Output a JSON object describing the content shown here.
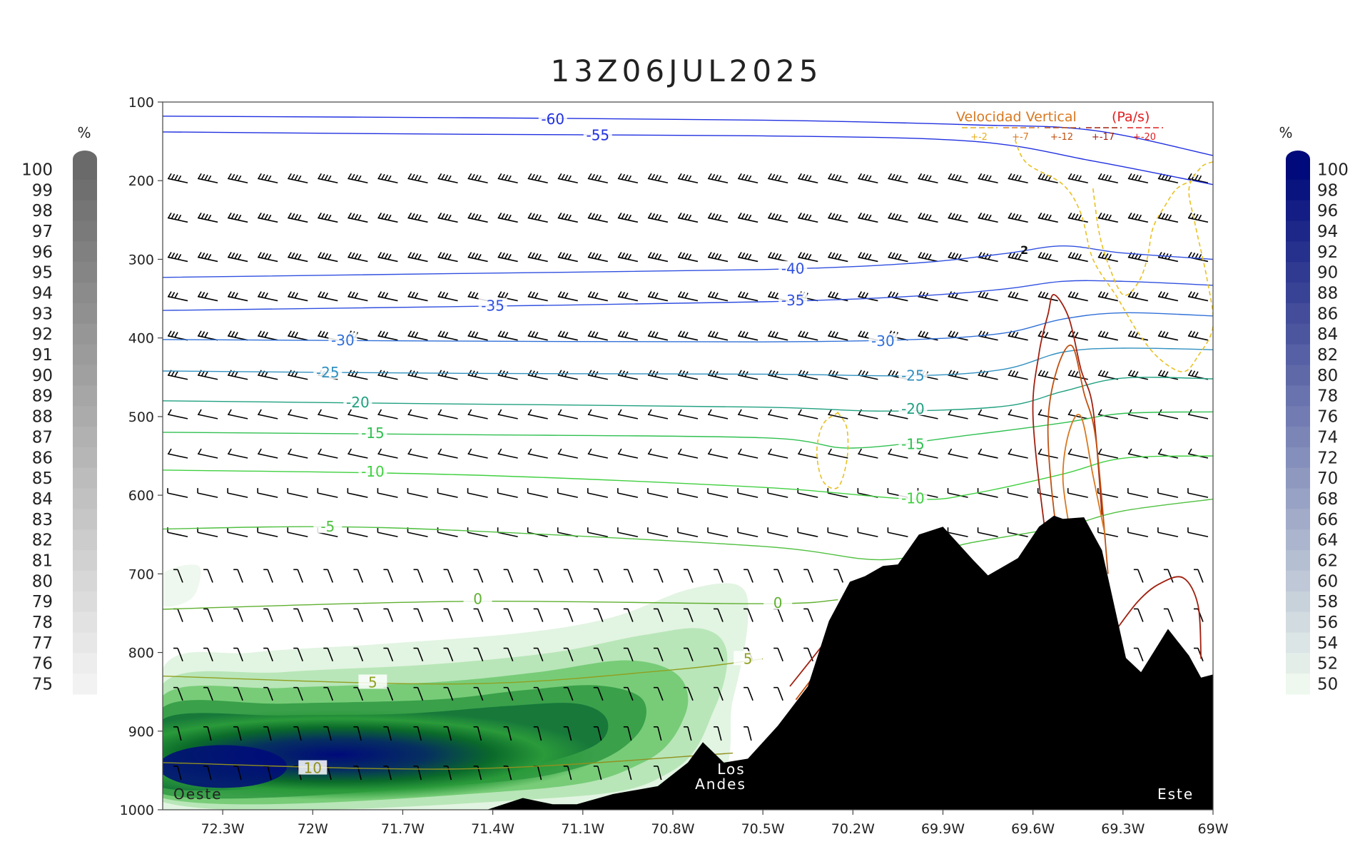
{
  "chart_data": {
    "type": "contour",
    "title": "13Z06JUL2025",
    "xlabel": "",
    "ylabel": "",
    "x_ticks": [
      "72.3W",
      "72W",
      "71.7W",
      "71.4W",
      "71.1W",
      "70.8W",
      "70.5W",
      "70.2W",
      "69.9W",
      "69.6W",
      "69.3W",
      "69W"
    ],
    "x_tick_values": [
      -72.3,
      -72.0,
      -71.7,
      -71.4,
      -71.1,
      -70.8,
      -70.5,
      -70.2,
      -69.9,
      -69.6,
      -69.3,
      -69.0
    ],
    "xlim": [
      -72.5,
      -69.0
    ],
    "y_ticks": [
      "100",
      "200",
      "300",
      "400",
      "500",
      "600",
      "700",
      "800",
      "900",
      "1000"
    ],
    "y_tick_values": [
      100,
      200,
      300,
      400,
      500,
      600,
      700,
      800,
      900,
      1000
    ],
    "ylim": [
      100,
      1000
    ],
    "y_scale": "linear-inverted",
    "annotations": {
      "terrain": [
        "Los",
        "Andes"
      ],
      "west": "Oeste",
      "east": "Este",
      "contour_label_2": "2"
    },
    "vertical_velocity_legend": {
      "title": "Velocidad Vertical",
      "units": "(Pa/s)",
      "entries": [
        {
          "label": "+-2",
          "color": "#e8b020"
        },
        {
          "label": "+-7",
          "color": "#d87820"
        },
        {
          "label": "+-12",
          "color": "#c05010"
        },
        {
          "label": "+-17",
          "color": "#a02010"
        },
        {
          "label": "+-20",
          "color": "#e02020"
        }
      ]
    },
    "cloud_colorbar": {
      "unit": "%",
      "labels": [
        "100",
        "99",
        "98",
        "97",
        "96",
        "95",
        "94",
        "93",
        "92",
        "91",
        "90",
        "89",
        "88",
        "87",
        "86",
        "85",
        "84",
        "83",
        "82",
        "81",
        "80",
        "79",
        "78",
        "77",
        "76",
        "75"
      ],
      "color_top": "#6a6a6a",
      "color_bottom": "#f2f2f2"
    },
    "humidity_colorbar": {
      "unit": "%",
      "labels": [
        "100",
        "98",
        "96",
        "94",
        "92",
        "90",
        "88",
        "86",
        "84",
        "82",
        "80",
        "78",
        "76",
        "74",
        "72",
        "70",
        "68",
        "66",
        "64",
        "62",
        "60",
        "58",
        "56",
        "54",
        "52",
        "50"
      ],
      "color_top": "#000a7a",
      "color_bottom": "#eef8ee"
    },
    "temperature_isotherms": [
      {
        "value": -60,
        "label": "-60",
        "color": "#2030e0",
        "x": [
          -72.5,
          -71.5,
          -70.5,
          -69.8,
          -69.4,
          -69.0
        ],
        "p": [
          118,
          120,
          123,
          129,
          136,
          168
        ],
        "labels_at": [
          [
            -71.2,
            122
          ]
        ]
      },
      {
        "value": -55,
        "label": "-55",
        "color": "#2030e0",
        "x": [
          -72.5,
          -71.5,
          -70.5,
          -69.8,
          -69.4,
          -69.0
        ],
        "p": [
          138,
          141,
          143,
          150,
          175,
          205
        ],
        "labels_at": [
          [
            -71.05,
            142
          ]
        ]
      },
      {
        "value": -40,
        "label": "-40",
        "color": "#3050e0",
        "x": [
          -72.5,
          -71.5,
          -70.5,
          -70.0,
          -69.7,
          -69.5,
          -69.3,
          -69.0
        ],
        "p": [
          323,
          318,
          313,
          305,
          293,
          283,
          292,
          300
        ],
        "labels_at": [
          [
            -70.4,
            312
          ]
        ]
      },
      {
        "value": -35,
        "label": "-35",
        "color": "#3050e0",
        "x": [
          -72.5,
          -71.5,
          -70.5,
          -70.0,
          -69.7,
          -69.5,
          -69.3,
          -69.0
        ],
        "p": [
          365,
          360,
          354,
          347,
          338,
          328,
          328,
          333
        ],
        "labels_at": [
          [
            -71.4,
            359
          ],
          [
            -70.4,
            352
          ]
        ]
      },
      {
        "value": -30,
        "label": "-30",
        "color": "#3070d8",
        "x": [
          -72.5,
          -71.5,
          -70.5,
          -70.0,
          -69.7,
          -69.5,
          -69.3,
          -69.0
        ],
        "p": [
          402,
          404,
          405,
          402,
          394,
          376,
          368,
          372
        ],
        "labels_at": [
          [
            -71.9,
            403
          ],
          [
            -70.1,
            404
          ]
        ]
      },
      {
        "value": -25,
        "label": "-25",
        "color": "#3090c0",
        "x": [
          -72.5,
          -71.5,
          -70.5,
          -70.0,
          -69.7,
          -69.5,
          -69.3,
          -69.0
        ],
        "p": [
          442,
          445,
          446,
          448,
          440,
          418,
          413,
          415
        ],
        "labels_at": [
          [
            -71.95,
            444
          ],
          [
            -70.0,
            448
          ]
        ]
      },
      {
        "value": -20,
        "label": "-20",
        "color": "#20a080",
        "x": [
          -72.5,
          -71.5,
          -70.5,
          -70.1,
          -69.7,
          -69.5,
          -69.3,
          -69.0
        ],
        "p": [
          480,
          484,
          488,
          493,
          487,
          468,
          451,
          452
        ],
        "labels_at": [
          [
            -71.85,
            482
          ],
          [
            -70.0,
            490
          ]
        ]
      },
      {
        "value": -15,
        "label": "-15",
        "color": "#30c050",
        "x": [
          -72.5,
          -71.5,
          -70.5,
          -70.2,
          -69.8,
          -69.5,
          -69.3,
          -69.0
        ],
        "p": [
          520,
          523,
          527,
          540,
          523,
          508,
          496,
          494
        ],
        "labels_at": [
          [
            -71.8,
            521
          ],
          [
            -70.0,
            535
          ]
        ]
      },
      {
        "value": -10,
        "label": "-10",
        "color": "#40d040",
        "x": [
          -72.5,
          -71.5,
          -70.5,
          -70.0,
          -69.8,
          -69.5,
          -69.3,
          -69.0
        ],
        "p": [
          568,
          574,
          590,
          605,
          598,
          573,
          553,
          550
        ],
        "labels_at": [
          [
            -71.8,
            570
          ],
          [
            -70.0,
            604
          ]
        ]
      },
      {
        "value": -5,
        "label": "-5",
        "color": "#50c040",
        "x": [
          -72.5,
          -72.0,
          -71.5,
          -70.5,
          -70.1,
          -69.8,
          -69.5,
          -69.3,
          -69.0
        ],
        "p": [
          643,
          640,
          645,
          665,
          682,
          660,
          640,
          620,
          605
        ],
        "labels_at": [
          [
            -71.95,
            640
          ]
        ]
      },
      {
        "value": 0,
        "label": "0",
        "color": "#60b030",
        "x": [
          -72.5,
          -71.5,
          -70.5,
          -70.25
        ],
        "p": [
          745,
          735,
          738,
          733
        ],
        "labels_at": [
          [
            -71.45,
            732
          ],
          [
            -70.45,
            737
          ]
        ]
      },
      {
        "value": 5,
        "label": "5",
        "color": "#90a020",
        "x": [
          -72.5,
          -71.5,
          -70.8,
          -70.5
        ],
        "p": [
          830,
          840,
          822,
          808
        ],
        "labels_at": [
          [
            -71.8,
            838
          ],
          [
            -70.55,
            808
          ]
        ]
      },
      {
        "value": 10,
        "label": "10",
        "color": "#909020",
        "x": [
          -72.5,
          -71.5,
          -70.6
        ],
        "p": [
          940,
          948,
          928
        ],
        "labels_at": [
          [
            -72.0,
            947
          ]
        ]
      }
    ],
    "terrain_profile": {
      "x": [
        -71.42,
        -71.3,
        -71.2,
        -71.12,
        -71.0,
        -70.85,
        -70.75,
        -70.7,
        -70.63,
        -70.55,
        -70.45,
        -70.35,
        -70.28,
        -70.21,
        -70.16,
        -70.1,
        -70.05,
        -69.98,
        -69.9,
        -69.8,
        -69.75,
        -69.65,
        -69.58,
        -69.53,
        -69.5,
        -69.43,
        -69.37,
        -69.29,
        -69.24,
        -69.15,
        -69.08,
        -69.04,
        -69.0
      ],
      "p": [
        1000,
        985,
        993,
        993,
        980,
        970,
        940,
        914,
        940,
        935,
        893,
        843,
        760,
        710,
        703,
        690,
        688,
        650,
        640,
        682,
        702,
        680,
        640,
        626,
        630,
        628,
        670,
        807,
        825,
        770,
        804,
        832,
        828
      ]
    },
    "ascent_contours": [
      {
        "value": -2,
        "color": "#e8c020",
        "closed": true,
        "x": [
          -70.25,
          -70.22,
          -70.22,
          -70.25,
          -70.3,
          -70.32,
          -70.3,
          -70.25
        ],
        "p": [
          495,
          515,
          555,
          590,
          582,
          545,
          510,
          495
        ]
      },
      {
        "value": -2,
        "color": "#e8c020",
        "closed": false,
        "x": [
          -69.66,
          -69.62,
          -69.5,
          -69.44,
          -69.4,
          -69.32,
          -69.25,
          -69.18,
          -69.1,
          -69.05,
          -69.0,
          -69.02,
          -69.06,
          -69.08,
          -69.04,
          -69.0
        ],
        "p": [
          148,
          178,
          205,
          242,
          300,
          348,
          393,
          426,
          443,
          423,
          385,
          325,
          255,
          210,
          183,
          176
        ]
      },
      {
        "value": -2,
        "color": "#e8c020",
        "closed": false,
        "x": [
          -69.4,
          -69.38,
          -69.35,
          -69.3,
          -69.25,
          -69.22,
          -69.2,
          -69.16,
          -69.12,
          -69.07
        ],
        "p": [
          210,
          265,
          305,
          345,
          330,
          300,
          260,
          232,
          210,
          200
        ]
      }
    ],
    "descent_contours": [
      {
        "value": 17,
        "color": "#a02010",
        "x": [
          -69.52,
          -69.56,
          -69.6,
          -69.58,
          -69.55,
          -69.53,
          -69.48,
          -69.44,
          -69.4,
          -69.37
        ],
        "p": [
          740,
          645,
          500,
          420,
          370,
          345,
          375,
          440,
          490,
          625
        ]
      },
      {
        "value": 12,
        "color": "#c05010",
        "x": [
          -69.49,
          -69.53,
          -69.55,
          -69.52,
          -69.47,
          -69.43,
          -69.39,
          -69.35
        ],
        "p": [
          700,
          620,
          510,
          440,
          410,
          470,
          530,
          700
        ]
      },
      {
        "value": 7,
        "color": "#d87820",
        "x": [
          -69.47,
          -69.5,
          -69.48,
          -69.44,
          -69.4,
          -69.36
        ],
        "p": [
          660,
          580,
          520,
          500,
          575,
          650
        ]
      },
      {
        "value": 17,
        "color": "#a02010",
        "x": [
          -70.41,
          -70.32,
          -70.28
        ],
        "p": [
          843,
          800,
          780
        ]
      },
      {
        "value": 12,
        "color": "#c05010",
        "x": [
          -70.39,
          -70.3,
          -70.26
        ],
        "p": [
          860,
          815,
          795
        ]
      },
      {
        "value": 17,
        "color": "#a02010",
        "x": [
          -69.33,
          -69.25,
          -69.18,
          -69.1,
          -69.05,
          -69.04
        ],
        "p": [
          775,
          735,
          713,
          705,
          740,
          808
        ]
      }
    ],
    "relative_humidity_field": {
      "description_levels": [
        50,
        60,
        70,
        80,
        90,
        100
      ],
      "moist_layer_p": [
        820,
        1000
      ],
      "moist_layer_x": [
        -72.5,
        -70.55
      ],
      "core_x": [
        -72.5,
        -71.15
      ],
      "core_p": [
        900,
        960
      ]
    }
  }
}
